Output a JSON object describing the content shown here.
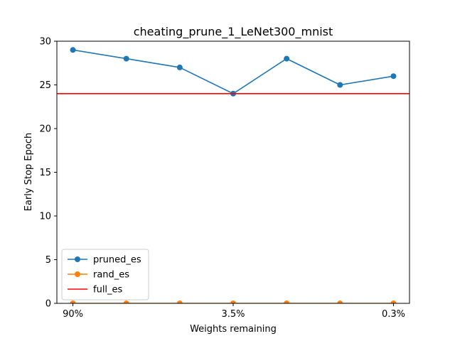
{
  "chart_data": {
    "type": "line",
    "title": "cheating_prune_1_LeNet300_mnist",
    "xlabel": "Weights remaining",
    "ylabel": "Early Stop Epoch",
    "x_points": 7,
    "xlim": [
      -0.3,
      6.3
    ],
    "ylim": [
      0,
      30
    ],
    "x_ticks": [
      {
        "index": 0,
        "label": "90%"
      },
      {
        "index": 3,
        "label": "3.5%"
      },
      {
        "index": 6,
        "label": "0.3%"
      }
    ],
    "y_ticks": [
      0,
      5,
      10,
      15,
      20,
      25,
      30
    ],
    "legend_position": "lower-left",
    "grid": false,
    "series": [
      {
        "name": "pruned_es",
        "color": "#1f77b4",
        "marker": "circle",
        "values": [
          29,
          28,
          27,
          24,
          28,
          25,
          26
        ]
      },
      {
        "name": "rand_es",
        "color": "#ff7f0e",
        "marker": "circle",
        "values": [
          0,
          0,
          0,
          0,
          0,
          0,
          0
        ]
      },
      {
        "name": "full_es",
        "color": "#ff0000",
        "marker": "none",
        "hline": 24
      }
    ]
  }
}
